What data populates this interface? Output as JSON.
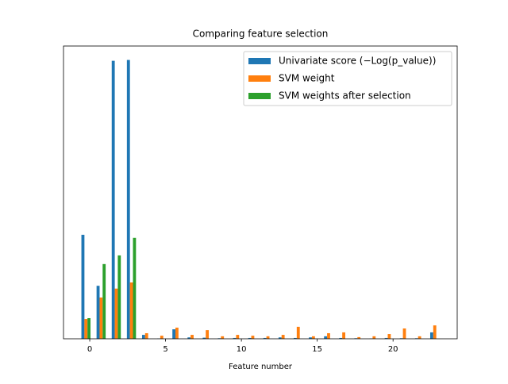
{
  "chart_data": {
    "type": "bar",
    "title": "Comparing feature selection",
    "x_label": "Feature number",
    "x": [
      0,
      1,
      2,
      3,
      4,
      5,
      6,
      7,
      8,
      9,
      10,
      11,
      12,
      13,
      14,
      15,
      16,
      17,
      18,
      19,
      20,
      21,
      22,
      23
    ],
    "series": [
      {
        "name": "Univariate score (−Log(p_value))",
        "color": "#1f77b4",
        "values": [
          0.373,
          0.19,
          0.997,
          1.0,
          0.014,
          0.001,
          0.034,
          0.005,
          0.004,
          0.002,
          0.003,
          0.003,
          0.003,
          0.005,
          0.003,
          0.005,
          0.009,
          0.003,
          0.002,
          0.001,
          0.003,
          0.002,
          0.002,
          0.023
        ]
      },
      {
        "name": "SVM weight",
        "color": "#ff7f0e",
        "values": [
          0.071,
          0.148,
          0.18,
          0.202,
          0.02,
          0.011,
          0.04,
          0.014,
          0.031,
          0.009,
          0.014,
          0.011,
          0.009,
          0.014,
          0.043,
          0.009,
          0.02,
          0.023,
          0.006,
          0.009,
          0.017,
          0.037,
          0.009,
          0.048
        ]
      },
      {
        "name": "SVM weights after selection",
        "color": "#2ca02c",
        "values": [
          0.074,
          0.268,
          0.299,
          0.362,
          null,
          null,
          null,
          null,
          null,
          null,
          null,
          null,
          null,
          null,
          null,
          null,
          null,
          null,
          null,
          null,
          null,
          null,
          null,
          null
        ]
      }
    ],
    "xlim": [
      -1.73,
      24.23
    ],
    "xticks": [
      0,
      5,
      10,
      15,
      20
    ],
    "ylim": [
      0,
      1.05
    ],
    "legend": "upper right"
  }
}
